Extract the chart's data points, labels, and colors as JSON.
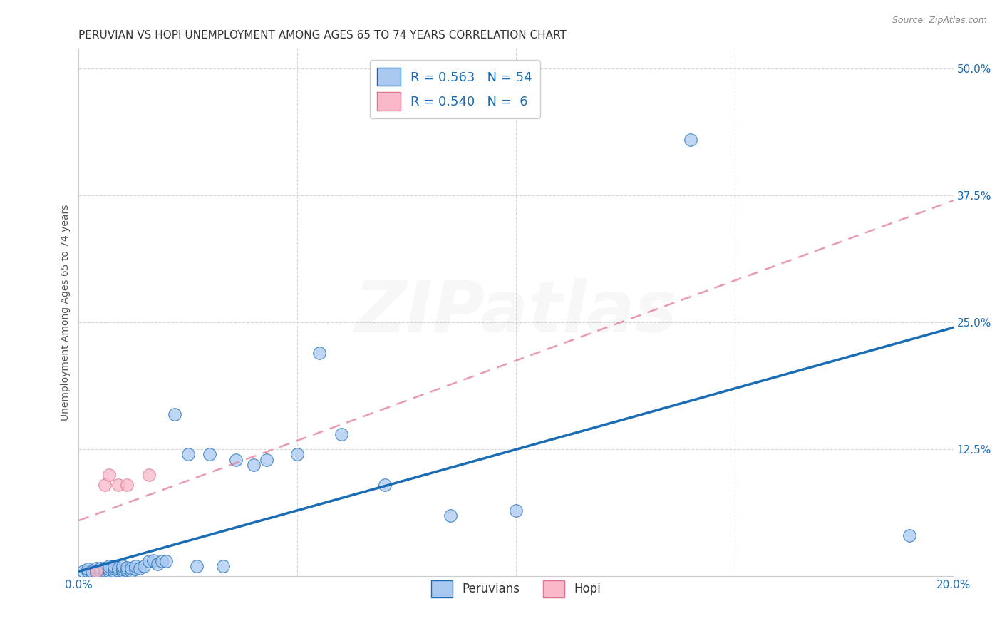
{
  "title": "PERUVIAN VS HOPI UNEMPLOYMENT AMONG AGES 65 TO 74 YEARS CORRELATION CHART",
  "source": "Source: ZipAtlas.com",
  "xlabel": "",
  "ylabel": "Unemployment Among Ages 65 to 74 years",
  "xlim": [
    0.0,
    0.2
  ],
  "ylim": [
    0.0,
    0.52
  ],
  "yticks": [
    0.0,
    0.125,
    0.25,
    0.375,
    0.5
  ],
  "ytick_labels": [
    "",
    "12.5%",
    "25.0%",
    "37.5%",
    "50.0%"
  ],
  "xticks": [
    0.0,
    0.05,
    0.1,
    0.15,
    0.2
  ],
  "xtick_labels": [
    "0.0%",
    "",
    "",
    "",
    "20.0%"
  ],
  "peruvian_R": 0.563,
  "peruvian_N": 54,
  "hopi_R": 0.54,
  "hopi_N": 6,
  "peruvian_color": "#a8c8f0",
  "peruvian_line_color": "#1a6cb4",
  "hopi_color": "#f8b8c8",
  "hopi_line_color": "#e07090",
  "watermark_part1": "ZI",
  "watermark_part2": "P",
  "watermark_part3": "atlas",
  "peruvian_x": [
    0.001,
    0.002,
    0.002,
    0.003,
    0.003,
    0.004,
    0.004,
    0.004,
    0.005,
    0.005,
    0.005,
    0.006,
    0.006,
    0.006,
    0.007,
    0.007,
    0.007,
    0.008,
    0.008,
    0.008,
    0.009,
    0.009,
    0.01,
    0.01,
    0.01,
    0.011,
    0.011,
    0.012,
    0.012,
    0.013,
    0.013,
    0.014,
    0.015,
    0.016,
    0.017,
    0.018,
    0.019,
    0.02,
    0.022,
    0.025,
    0.027,
    0.03,
    0.033,
    0.036,
    0.04,
    0.043,
    0.05,
    0.055,
    0.06,
    0.07,
    0.085,
    0.1,
    0.14,
    0.19
  ],
  "peruvian_y": [
    0.005,
    0.005,
    0.007,
    0.003,
    0.005,
    0.004,
    0.006,
    0.008,
    0.003,
    0.006,
    0.008,
    0.004,
    0.006,
    0.008,
    0.005,
    0.007,
    0.01,
    0.005,
    0.008,
    0.01,
    0.006,
    0.008,
    0.005,
    0.007,
    0.01,
    0.006,
    0.009,
    0.005,
    0.008,
    0.007,
    0.01,
    0.008,
    0.01,
    0.015,
    0.016,
    0.012,
    0.015,
    0.015,
    0.16,
    0.12,
    0.01,
    0.12,
    0.01,
    0.115,
    0.11,
    0.115,
    0.12,
    0.22,
    0.14,
    0.09,
    0.06,
    0.065,
    0.43,
    0.04
  ],
  "hopi_x": [
    0.004,
    0.006,
    0.007,
    0.009,
    0.011,
    0.016
  ],
  "hopi_y": [
    0.005,
    0.09,
    0.1,
    0.09,
    0.09,
    0.1
  ],
  "peruvian_trend_x": [
    0.0,
    0.2
  ],
  "peruvian_trend_y": [
    0.005,
    0.245
  ],
  "hopi_trend_x": [
    0.0,
    0.2
  ],
  "hopi_trend_y": [
    0.055,
    0.37
  ],
  "legend_label_color": "#1a6cb4",
  "title_fontsize": 11,
  "axis_label_fontsize": 10,
  "tick_fontsize": 11,
  "background_color": "#ffffff",
  "grid_color": "#cccccc"
}
